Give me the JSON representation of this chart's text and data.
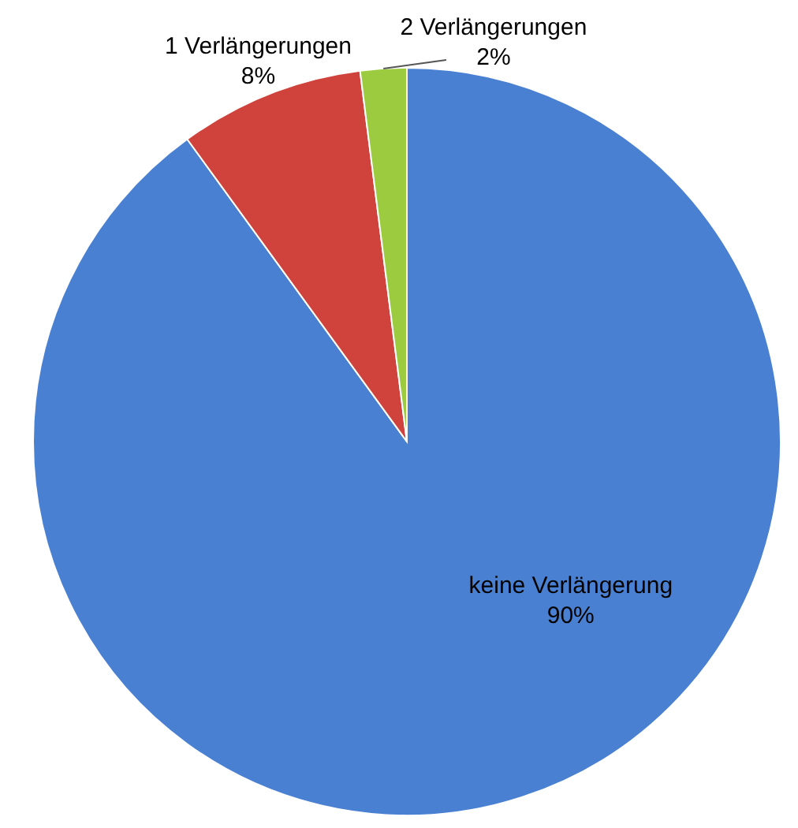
{
  "chart_data": {
    "type": "pie",
    "categories": [
      "keine Verlängerung",
      "1 Verlängerungen",
      "2 Verlängerungen"
    ],
    "values": [
      90,
      8,
      2
    ],
    "colors": [
      "#4a80d2",
      "#d0433c",
      "#9ccb3f"
    ],
    "value_labels": [
      "90%",
      "8%",
      "2%"
    ],
    "legend": false
  }
}
